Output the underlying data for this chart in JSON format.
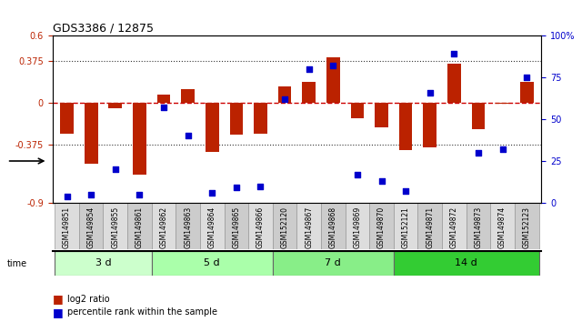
{
  "title": "GDS3386 / 12875",
  "samples": [
    "GSM149851",
    "GSM149854",
    "GSM149855",
    "GSM149861",
    "GSM149862",
    "GSM149863",
    "GSM149864",
    "GSM149865",
    "GSM149866",
    "GSM152120",
    "GSM149867",
    "GSM149868",
    "GSM149869",
    "GSM149870",
    "GSM152121",
    "GSM149871",
    "GSM149872",
    "GSM149873",
    "GSM149874",
    "GSM152123"
  ],
  "log2_ratio": [
    -0.28,
    -0.55,
    -0.05,
    -0.65,
    0.07,
    0.12,
    -0.44,
    -0.29,
    -0.28,
    0.14,
    0.18,
    0.4,
    -0.14,
    -0.22,
    -0.43,
    -0.4,
    0.35,
    -0.24,
    -0.01,
    0.18
  ],
  "percentile_rank": [
    4,
    5,
    20,
    5,
    57,
    40,
    6,
    9,
    10,
    62,
    80,
    82,
    17,
    13,
    7,
    66,
    89,
    30,
    32,
    75
  ],
  "groups": [
    {
      "label": "3 d",
      "start": 0,
      "end": 4,
      "color": "#ccffcc"
    },
    {
      "label": "5 d",
      "start": 4,
      "end": 9,
      "color": "#aaffaa"
    },
    {
      "label": "7 d",
      "start": 9,
      "end": 14,
      "color": "#88ee88"
    },
    {
      "label": "14 d",
      "start": 14,
      "end": 20,
      "color": "#33cc33"
    }
  ],
  "ylim_left": [
    -0.9,
    0.6
  ],
  "ylim_right": [
    0,
    100
  ],
  "yticks_left": [
    -0.9,
    -0.375,
    0,
    0.375,
    0.6
  ],
  "ytick_labels_left": [
    "-0.9",
    "-0.375",
    "0",
    "0.375",
    "0.6"
  ],
  "yticks_right": [
    0,
    25,
    50,
    75,
    100
  ],
  "bar_color": "#bb2200",
  "dot_color": "#0000cc",
  "zero_line_color": "#cc0000",
  "dotted_line_color": "#333333",
  "bg_color": "#ffffff",
  "plot_bg_color": "#ffffff"
}
